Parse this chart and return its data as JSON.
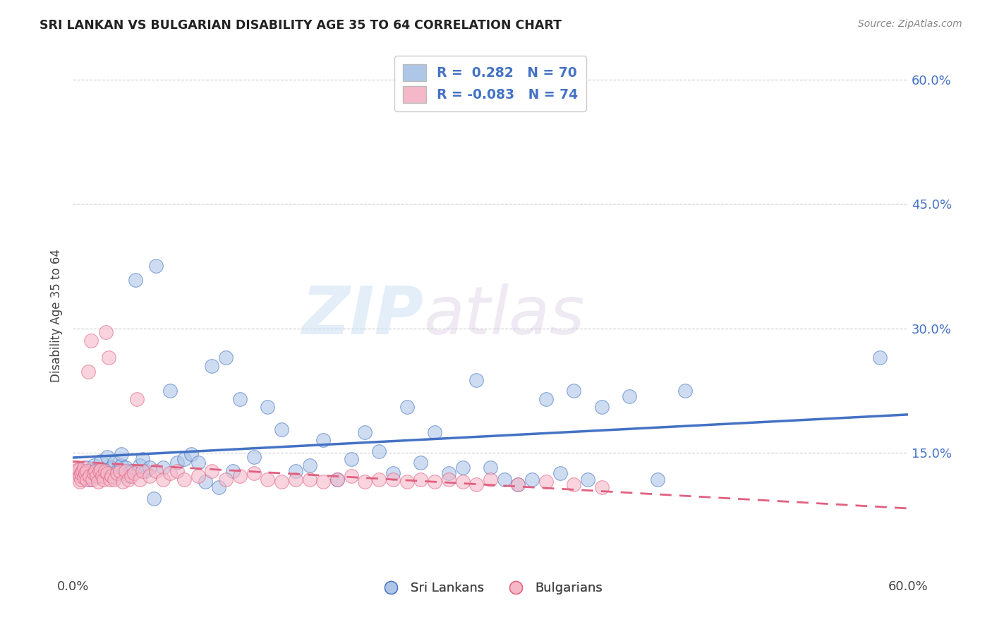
{
  "title": "SRI LANKAN VS BULGARIAN DISABILITY AGE 35 TO 64 CORRELATION CHART",
  "source": "Source: ZipAtlas.com",
  "ylabel": "Disability Age 35 to 64",
  "color_sri": "#aec6e8",
  "color_bul": "#f5b8c8",
  "color_line_sri": "#4472c4",
  "color_line_bul": "#e06080",
  "color_text_blue": "#4472c4",
  "color_title": "#222222",
  "watermark_zip": "ZIP",
  "watermark_atlas": "atlas",
  "xlim": [
    0.0,
    0.6
  ],
  "ylim": [
    0.0,
    0.63
  ],
  "xticks": [
    0.0,
    0.1,
    0.2,
    0.3,
    0.4,
    0.5,
    0.6
  ],
  "yticks": [
    0.15,
    0.3,
    0.45,
    0.6
  ],
  "ytick_labels": [
    "15.0%",
    "30.0%",
    "45.0%",
    "60.0%"
  ],
  "sri_x": [
    0.005,
    0.008,
    0.01,
    0.012,
    0.015,
    0.015,
    0.018,
    0.02,
    0.02,
    0.022,
    0.025,
    0.025,
    0.028,
    0.03,
    0.03,
    0.032,
    0.035,
    0.035,
    0.038,
    0.04,
    0.042,
    0.045,
    0.048,
    0.05,
    0.052,
    0.055,
    0.058,
    0.06,
    0.065,
    0.07,
    0.075,
    0.08,
    0.085,
    0.09,
    0.095,
    0.1,
    0.105,
    0.11,
    0.115,
    0.12,
    0.13,
    0.14,
    0.15,
    0.16,
    0.17,
    0.18,
    0.19,
    0.2,
    0.21,
    0.22,
    0.23,
    0.24,
    0.25,
    0.26,
    0.27,
    0.28,
    0.29,
    0.3,
    0.31,
    0.32,
    0.33,
    0.34,
    0.35,
    0.36,
    0.37,
    0.38,
    0.4,
    0.42,
    0.44,
    0.58
  ],
  "sri_y": [
    0.13,
    0.125,
    0.132,
    0.118,
    0.128,
    0.135,
    0.122,
    0.14,
    0.128,
    0.13,
    0.125,
    0.145,
    0.132,
    0.12,
    0.138,
    0.128,
    0.135,
    0.148,
    0.132,
    0.122,
    0.128,
    0.358,
    0.135,
    0.142,
    0.128,
    0.132,
    0.095,
    0.375,
    0.132,
    0.225,
    0.138,
    0.142,
    0.148,
    0.138,
    0.115,
    0.255,
    0.108,
    0.265,
    0.128,
    0.215,
    0.145,
    0.205,
    0.178,
    0.128,
    0.135,
    0.165,
    0.118,
    0.142,
    0.175,
    0.152,
    0.125,
    0.205,
    0.138,
    0.175,
    0.125,
    0.132,
    0.238,
    0.132,
    0.118,
    0.112,
    0.118,
    0.215,
    0.125,
    0.225,
    0.118,
    0.205,
    0.218,
    0.118,
    0.225,
    0.265
  ],
  "bul_x": [
    0.002,
    0.003,
    0.004,
    0.005,
    0.005,
    0.006,
    0.006,
    0.007,
    0.008,
    0.008,
    0.009,
    0.01,
    0.01,
    0.011,
    0.012,
    0.013,
    0.014,
    0.015,
    0.016,
    0.017,
    0.018,
    0.019,
    0.02,
    0.021,
    0.022,
    0.023,
    0.024,
    0.025,
    0.026,
    0.027,
    0.028,
    0.03,
    0.032,
    0.034,
    0.036,
    0.038,
    0.04,
    0.042,
    0.044,
    0.046,
    0.048,
    0.05,
    0.055,
    0.06,
    0.065,
    0.07,
    0.075,
    0.08,
    0.09,
    0.1,
    0.11,
    0.12,
    0.13,
    0.14,
    0.15,
    0.16,
    0.17,
    0.18,
    0.19,
    0.2,
    0.21,
    0.22,
    0.23,
    0.24,
    0.25,
    0.26,
    0.27,
    0.28,
    0.29,
    0.3,
    0.32,
    0.34,
    0.36,
    0.38
  ],
  "bul_y": [
    0.128,
    0.132,
    0.13,
    0.115,
    0.122,
    0.118,
    0.125,
    0.128,
    0.132,
    0.12,
    0.125,
    0.128,
    0.118,
    0.248,
    0.122,
    0.285,
    0.118,
    0.125,
    0.128,
    0.122,
    0.115,
    0.128,
    0.13,
    0.122,
    0.118,
    0.128,
    0.295,
    0.125,
    0.265,
    0.118,
    0.122,
    0.118,
    0.125,
    0.128,
    0.115,
    0.128,
    0.118,
    0.122,
    0.125,
    0.215,
    0.118,
    0.128,
    0.122,
    0.128,
    0.118,
    0.125,
    0.128,
    0.118,
    0.122,
    0.128,
    0.118,
    0.122,
    0.125,
    0.118,
    0.115,
    0.118,
    0.118,
    0.115,
    0.118,
    0.122,
    0.115,
    0.118,
    0.118,
    0.115,
    0.118,
    0.115,
    0.118,
    0.115,
    0.112,
    0.118,
    0.112,
    0.115,
    0.112,
    0.108
  ]
}
